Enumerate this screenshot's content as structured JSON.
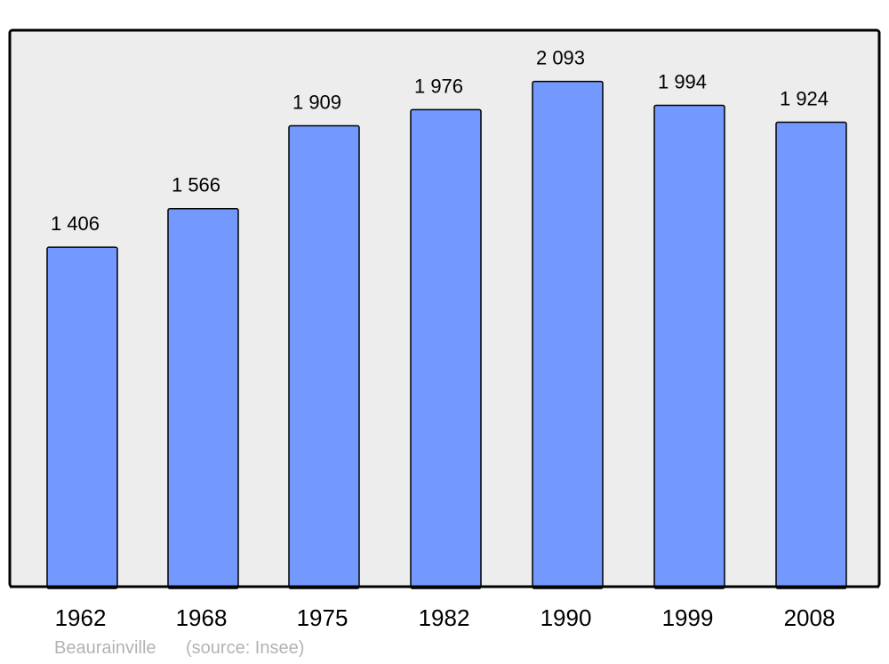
{
  "chart_data": {
    "type": "bar",
    "categories": [
      "1962",
      "1968",
      "1975",
      "1982",
      "1990",
      "1999",
      "2008"
    ],
    "values": [
      1406,
      1566,
      1909,
      1976,
      2093,
      1994,
      1924
    ],
    "value_labels": [
      "1 406",
      "1 566",
      "1 909",
      "1 976",
      "2 093",
      "1 994",
      "1 924"
    ],
    "title": "",
    "xlabel": "",
    "ylabel": "",
    "ylim": [
      0,
      2305
    ],
    "grid": false,
    "colors": {
      "bar": "#7399ff",
      "plot_background": "#ededed",
      "border": "#000000",
      "source_text": "#b3b3b3"
    }
  },
  "footer": {
    "place": "Beaurainville",
    "source": "(source: Insee)"
  }
}
